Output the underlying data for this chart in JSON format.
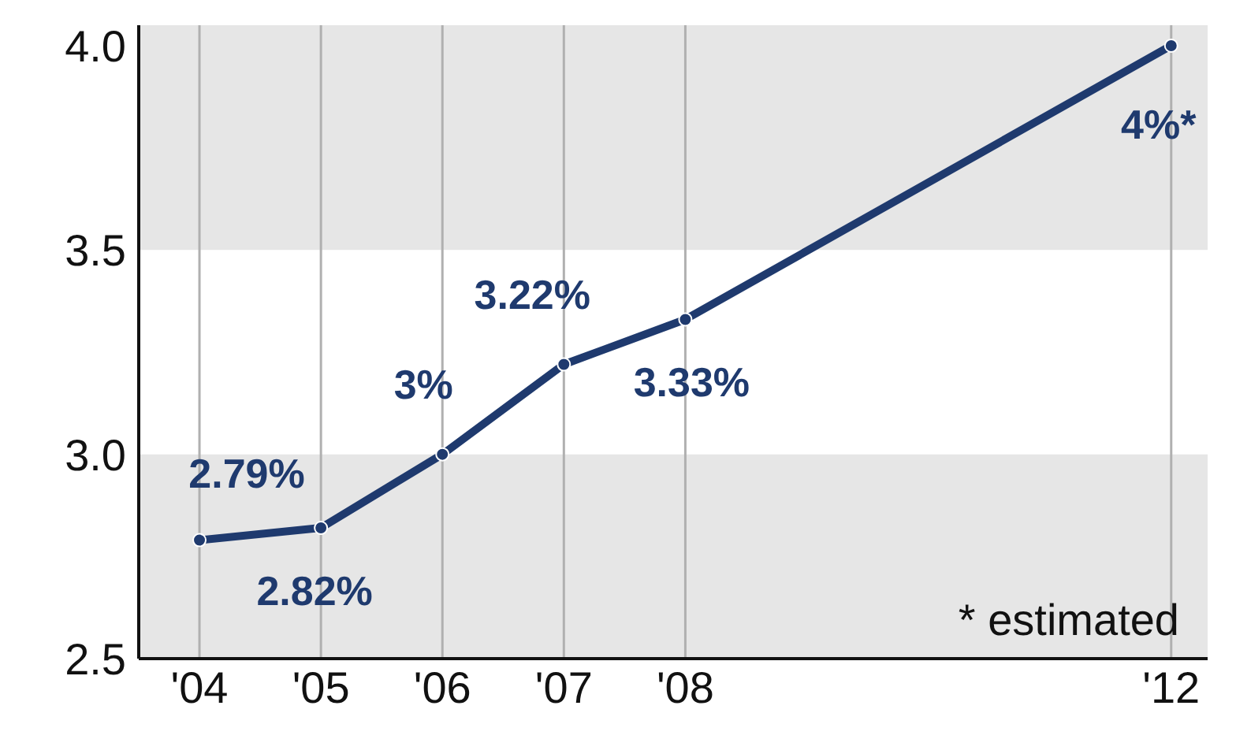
{
  "chart_data": {
    "type": "line",
    "x": [
      2004,
      2005,
      2006,
      2007,
      2008,
      2012
    ],
    "series": [
      {
        "color": "#1f3a6e",
        "values": [
          2.79,
          2.82,
          3,
          3.22,
          3.33,
          4
        ],
        "value_labels": [
          "2.79%",
          "2.82%",
          "3%",
          "3.22%",
          "3.33%",
          "4%*"
        ]
      }
    ],
    "xlim": [
      2003.5,
      2012.3
    ],
    "xticks": [
      {
        "value": 2004,
        "label": "'04"
      },
      {
        "value": 2005,
        "label": "'05"
      },
      {
        "value": 2006,
        "label": "'06"
      },
      {
        "value": 2007,
        "label": "'07"
      },
      {
        "value": 2008,
        "label": "'08"
      },
      {
        "value": 2012,
        "label": "'12"
      }
    ],
    "ylim": [
      2.5,
      4.05
    ],
    "yticks": [
      2.5,
      {
        "value": 3,
        "label": "3.0"
      },
      3.5,
      {
        "value": 4,
        "label": "4.0"
      }
    ],
    "bands": [
      {
        "axis": "y",
        "from": 2.5,
        "to": 3,
        "color": "#e6e6e6"
      },
      {
        "axis": "y",
        "from": 3.5,
        "to": 4.05,
        "color": "#e6e6e6"
      }
    ],
    "grid": "x",
    "marker": "circle",
    "line_style": "solid",
    "legend": false,
    "annotations": [
      "* estimated"
    ]
  }
}
